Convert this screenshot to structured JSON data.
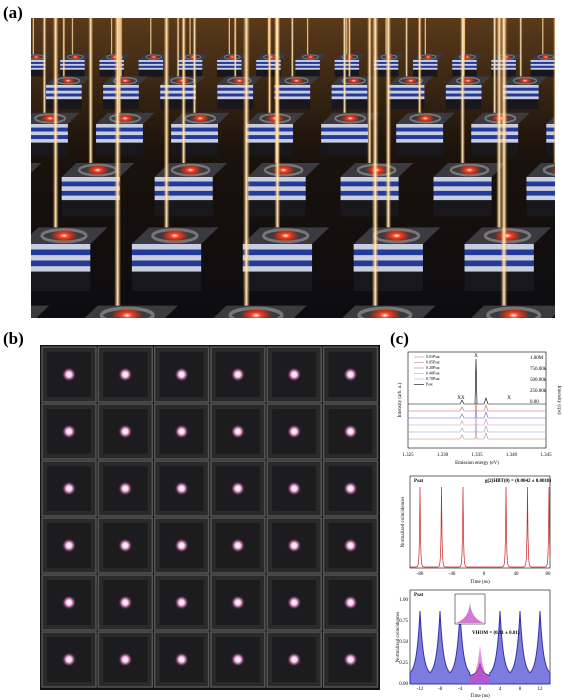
{
  "panels": {
    "a": {
      "label": "(a)"
    },
    "b": {
      "label": "(b)"
    },
    "c": {
      "label": "(c)",
      "spectrum": {
        "ylabel": "Intensity (arb. u.)",
        "y2label": "Intensity (cps)",
        "xlabel": "Emission energy (eV)",
        "xticks": [
          "1.325",
          "1.330",
          "1.335",
          "1.340",
          "1.345"
        ],
        "y2ticks": [
          "1.00M",
          "750.00k",
          "500.00k",
          "250.00k",
          "0.00"
        ],
        "legend": [
          "0.01Psat",
          "0.05Psat",
          "0.20Psat",
          "0.40Psat",
          "0.70Psat",
          "Psat"
        ],
        "peak_labels": [
          "XX",
          "X",
          "X"
        ]
      },
      "hbt": {
        "corner": "Psat",
        "annotation": "g(2)HBT(0) = (0.0042 ± 0.0018)",
        "ylabel": "Normalized coincidences",
        "xlabel": "Time (ns)",
        "xticks": [
          "-80",
          "-40",
          "0",
          "40",
          "80"
        ]
      },
      "hom": {
        "corner": "Psat",
        "annotation": "VHOM = (0.91 ± 0.01)",
        "ylabel": "Normalized coincidences",
        "xlabel": "Time (ns)",
        "xticks": [
          "-12",
          "-8",
          "-4",
          "0",
          "4",
          "8",
          "12"
        ],
        "yticks": [
          "1.00",
          "0.75",
          "0.50",
          "0.25",
          "0.00"
        ]
      }
    }
  }
}
